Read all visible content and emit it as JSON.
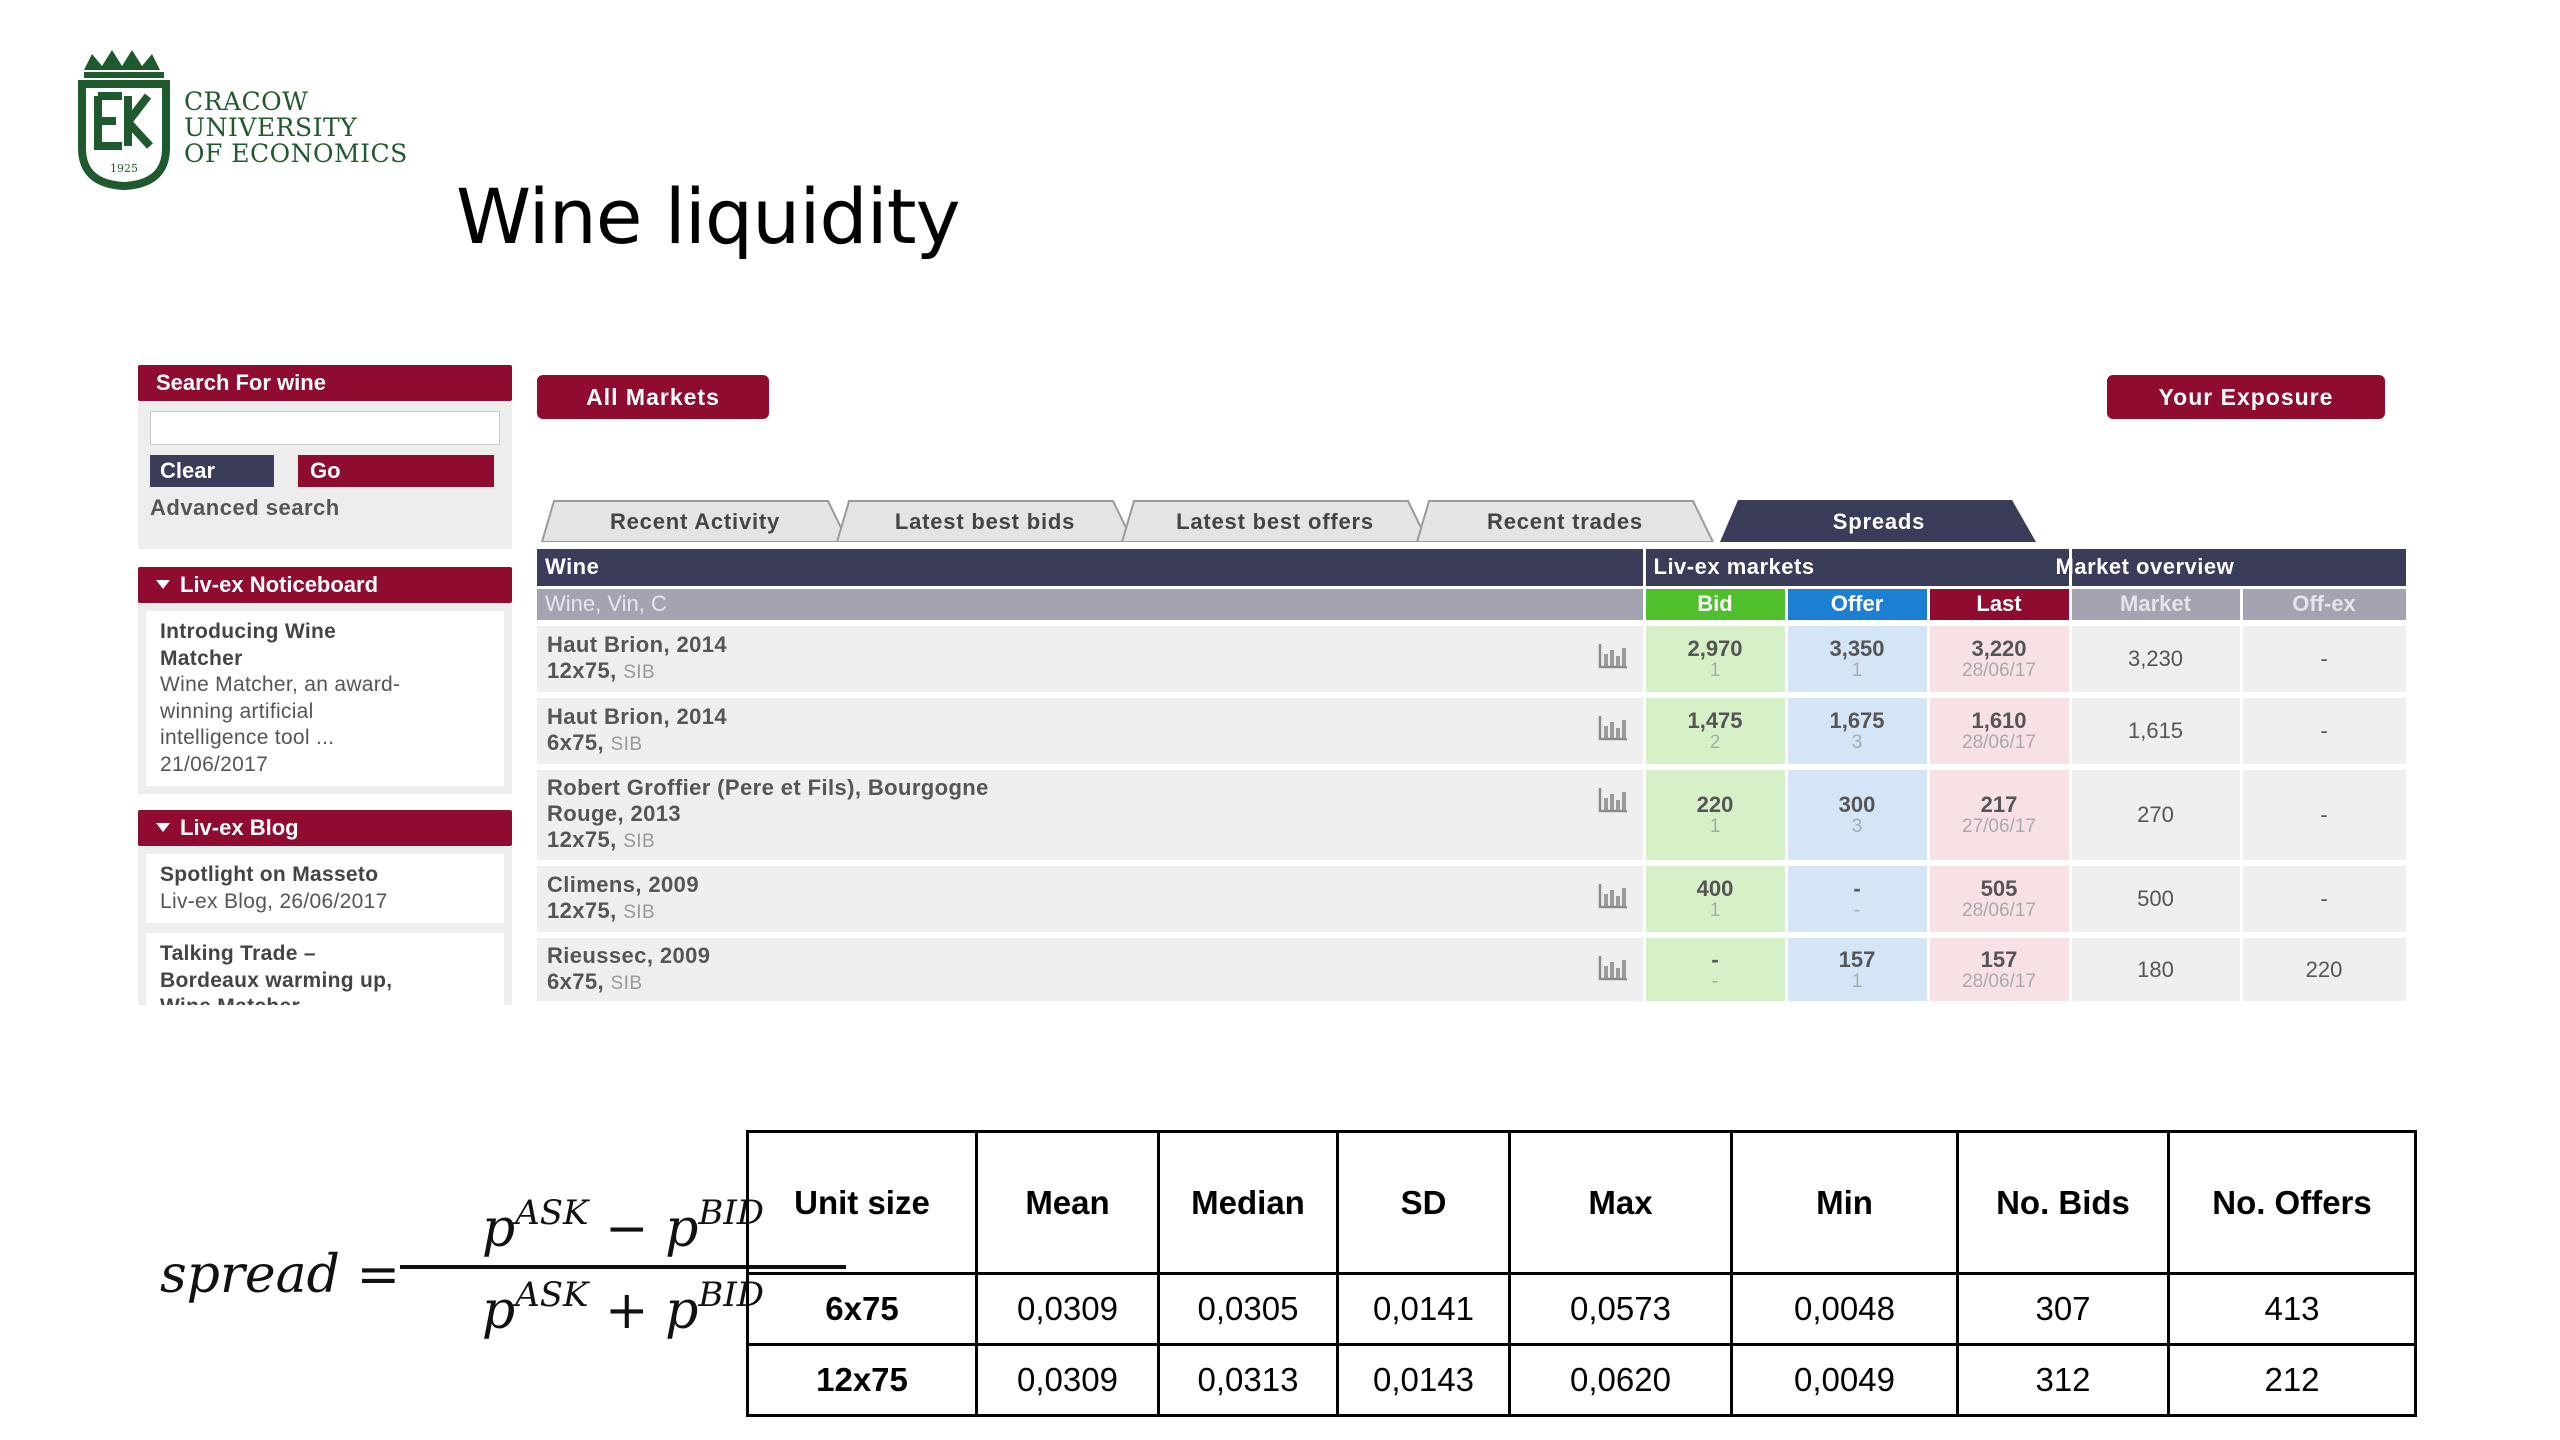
{
  "logo": {
    "lines": [
      "CRACOW",
      "UNIVERSITY",
      "OF ECONOMICS"
    ],
    "year": "1925"
  },
  "slide_title": "Wine liquidity",
  "sidebar": {
    "search_header": "Search For wine",
    "search_value": "",
    "clear_label": "Clear",
    "go_label": "Go",
    "advanced_label": "Advanced search",
    "noticeboard_header": "Liv-ex Noticeboard",
    "notice": {
      "title_line1": "Introducing Wine",
      "title_line2": "Matcher",
      "body_line1": "Wine Matcher, an award-",
      "body_line2": "winning artificial",
      "body_line3": "intelligence tool ...",
      "date": "21/06/2017"
    },
    "blog_header": "Liv-ex Blog",
    "blog1_title": "Spotlight on Masseto",
    "blog1_meta": "Liv-ex Blog, 26/06/2017",
    "blog2_line1": "Talking Trade –",
    "blog2_line2": "Bordeaux warming up,",
    "blog2_line3": "Wine Matcher"
  },
  "top_buttons": {
    "all_markets": "All Markets",
    "your_exposure": "Your Exposure"
  },
  "tabs": [
    "Recent Activity",
    "Latest best bids",
    "Latest best offers",
    "Recent trades",
    "Spreads"
  ],
  "active_tab": "Spreads",
  "market_table": {
    "group_headers": {
      "wine": "Wine",
      "livex": "Liv-ex markets",
      "overview": "Market overview"
    },
    "sub_headers": {
      "wvc": "Wine, Vin, C",
      "bid": "Bid",
      "offer": "Offer",
      "last": "Last",
      "market": "Market",
      "offex": "Off-ex"
    },
    "rows": [
      {
        "name1": "Haut Brion, 2014",
        "name2": "",
        "pack": "12x75,",
        "sib": "SIB",
        "bid": "2,970",
        "bid_n": "1",
        "offer": "3,350",
        "offer_n": "1",
        "last": "3,220",
        "last_date": "28/06/17",
        "market": "3,230",
        "offex": "-"
      },
      {
        "name1": "Haut Brion, 2014",
        "name2": "",
        "pack": "6x75,",
        "sib": "SIB",
        "bid": "1,475",
        "bid_n": "2",
        "offer": "1,675",
        "offer_n": "3",
        "last": "1,610",
        "last_date": "28/06/17",
        "market": "1,615",
        "offex": "-"
      },
      {
        "name1": "Robert Groffier (Pere et Fils), Bourgogne",
        "name2": "Rouge, 2013",
        "pack": "12x75,",
        "sib": "SIB",
        "bid": "220",
        "bid_n": "1",
        "offer": "300",
        "offer_n": "3",
        "last": "217",
        "last_date": "27/06/17",
        "market": "270",
        "offex": "-"
      },
      {
        "name1": "Climens, 2009",
        "name2": "",
        "pack": "12x75,",
        "sib": "SIB",
        "bid": "400",
        "bid_n": "1",
        "offer": "-",
        "offer_n": "-",
        "last": "505",
        "last_date": "28/06/17",
        "market": "500",
        "offex": "-"
      },
      {
        "name1": "Rieussec, 2009",
        "name2": "",
        "pack": "6x75,",
        "sib": "SIB",
        "bid": "-",
        "bid_n": "-",
        "offer": "157",
        "offer_n": "1",
        "last": "157",
        "last_date": "28/06/17",
        "market": "180",
        "offex": "220"
      }
    ]
  },
  "formula": {
    "lhs": "spread",
    "equals": "=",
    "p": "p",
    "ask": "ASK",
    "bid": "BID",
    "minus": "−",
    "plus": "+"
  },
  "stats_table": {
    "headers": [
      "Unit size",
      "Mean",
      "Median",
      "SD",
      "Max",
      "Min",
      "No. Bids",
      "No. Offers"
    ],
    "rows": [
      [
        "6x75",
        "0,0309",
        "0,0305",
        "0,0141",
        "0,0573",
        "0,0048",
        "307",
        "413"
      ],
      [
        "12x75",
        "0,0309",
        "0,0313",
        "0,0143",
        "0,0620",
        "0,0049",
        "312",
        "212"
      ]
    ]
  }
}
